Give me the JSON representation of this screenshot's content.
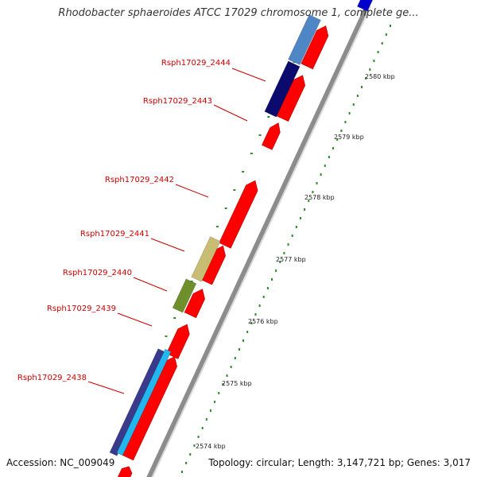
{
  "title": "Rhodobacter sphaeroides ATCC 17029 chromosome 1, complete ge...",
  "footer": {
    "accession": "Accession: NC_009049",
    "topology": "Topology: circular; Length: 3,147,721 bp; Genes: 3,017"
  },
  "colors": {
    "label_text": "#cc0000",
    "leader_line": "#cc0000",
    "scale_dots": "#2e8b2e",
    "backbone": "#8c8c8c",
    "gene_cds": "#ff0000"
  },
  "scale_ticks": [
    "2574 kbp",
    "2575 kbp",
    "2576 kbp",
    "2577 kbp",
    "2578 kbp",
    "2579 kbp",
    "2580 kbp"
  ],
  "gene_labels": [
    "Rsph17029_2444",
    "Rsph17029_2443",
    "Rsph17029_2442",
    "Rsph17029_2441",
    "Rsph17029_2440",
    "Rsph17029_2439",
    "Rsph17029_2438"
  ],
  "features": [
    {
      "track": "gene",
      "color": "#ff0000"
    },
    {
      "track": "gene",
      "color": "#ff0000"
    },
    {
      "track": "gene",
      "color": "#ff0000"
    },
    {
      "track": "gene",
      "color": "#ff0000"
    },
    {
      "track": "gene",
      "color": "#ff0000"
    },
    {
      "track": "gene",
      "color": "#ff0000"
    },
    {
      "track": "gene",
      "color": "#ff0000"
    },
    {
      "track": "gene",
      "color": "#ff0000"
    },
    {
      "track": "gene",
      "color": "#ff0000"
    },
    {
      "track": "cog",
      "color": "#4f86c6"
    },
    {
      "track": "cog",
      "color": "#0b0b6e"
    },
    {
      "track": "cog",
      "color": "#c8bd72"
    },
    {
      "track": "cog",
      "color": "#6f8f2a"
    },
    {
      "track": "cog",
      "color": "#3a3a8c"
    },
    {
      "track": "cog",
      "color": "#22b7ee"
    },
    {
      "track": "cog",
      "color": "#0000cc"
    }
  ]
}
